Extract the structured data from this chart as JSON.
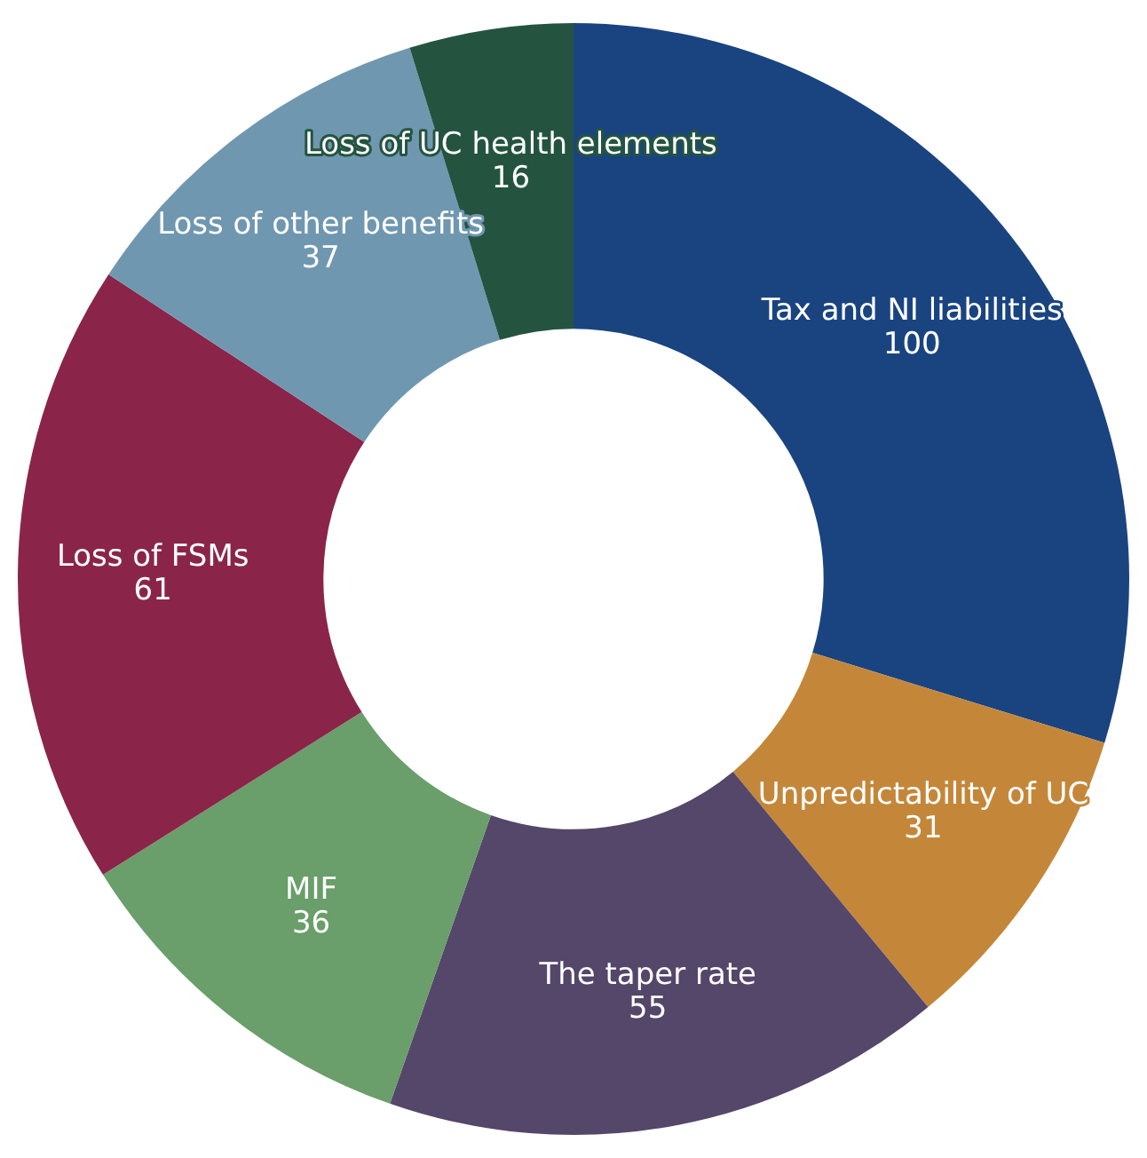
{
  "chart_data": {
    "type": "donut",
    "categories": [
      "Tax and NI liabilities",
      "Unpredictability of UC",
      "The taper rate",
      "MIF",
      "Loss of FSMs",
      "Loss of other benefits",
      "Loss of UC health elements"
    ],
    "values": [
      100,
      31,
      55,
      36,
      61,
      37,
      16
    ],
    "colors": [
      "#1a4480",
      "#c4873a",
      "#54476a",
      "#6a9e6a",
      "#8a2549",
      "#7097b0",
      "#245440"
    ],
    "data_labels": true,
    "legend": false
  }
}
